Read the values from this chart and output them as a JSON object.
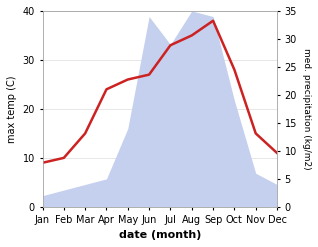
{
  "months": [
    "Jan",
    "Feb",
    "Mar",
    "Apr",
    "May",
    "Jun",
    "Jul",
    "Aug",
    "Sep",
    "Oct",
    "Nov",
    "Dec"
  ],
  "temperature": [
    9,
    10,
    15,
    24,
    26,
    27,
    33,
    35,
    38,
    28,
    15,
    11
  ],
  "precipitation": [
    2,
    3,
    4,
    5,
    14,
    34,
    29,
    35,
    34,
    19,
    6,
    4
  ],
  "temp_color": "#cc2222",
  "precip_fill_color": "#c5cfee",
  "left_ylim": [
    0,
    40
  ],
  "right_ylim": [
    0,
    35
  ],
  "left_ylabel": "max temp (C)",
  "right_ylabel": "med. precipitation (kg/m2)",
  "xlabel": "date (month)",
  "left_yticks": [
    0,
    10,
    20,
    30,
    40
  ],
  "right_yticks": [
    0,
    5,
    10,
    15,
    20,
    25,
    30,
    35
  ],
  "background_color": "#ffffff",
  "spine_color": "#aaaaaa",
  "grid_color": "#dddddd"
}
